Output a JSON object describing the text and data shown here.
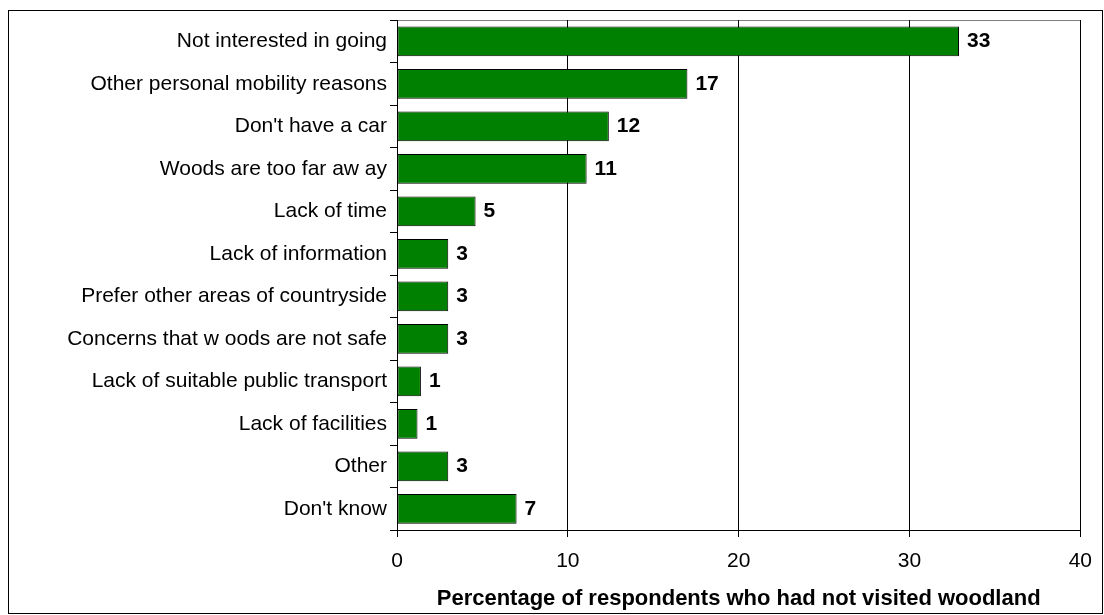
{
  "chart_data": {
    "type": "bar",
    "orientation": "horizontal",
    "categories": [
      "Not interested in going",
      "Other personal mobility reasons",
      "Don't have a car",
      "Woods are too far aw ay",
      "Lack of time",
      "Lack of information",
      "Prefer other areas of countryside",
      "Concerns that w oods are not safe",
      "Lack of suitable public transport",
      "Lack of facilities",
      "Other",
      "Don't know"
    ],
    "values": [
      32.9,
      17,
      12.4,
      11.1,
      4.6,
      3,
      3,
      3,
      1.4,
      1.2,
      3,
      7
    ],
    "value_labels": [
      "33",
      "17",
      "12",
      "11",
      "5",
      "3",
      "3",
      "3",
      "1",
      "1",
      "3",
      "7"
    ],
    "color": "#008000",
    "xlabel": "Percentage of respondents who had not visited woodland",
    "xlim": [
      0,
      40
    ],
    "xticks": [
      0,
      10,
      20,
      30,
      40
    ],
    "grid": "x"
  }
}
